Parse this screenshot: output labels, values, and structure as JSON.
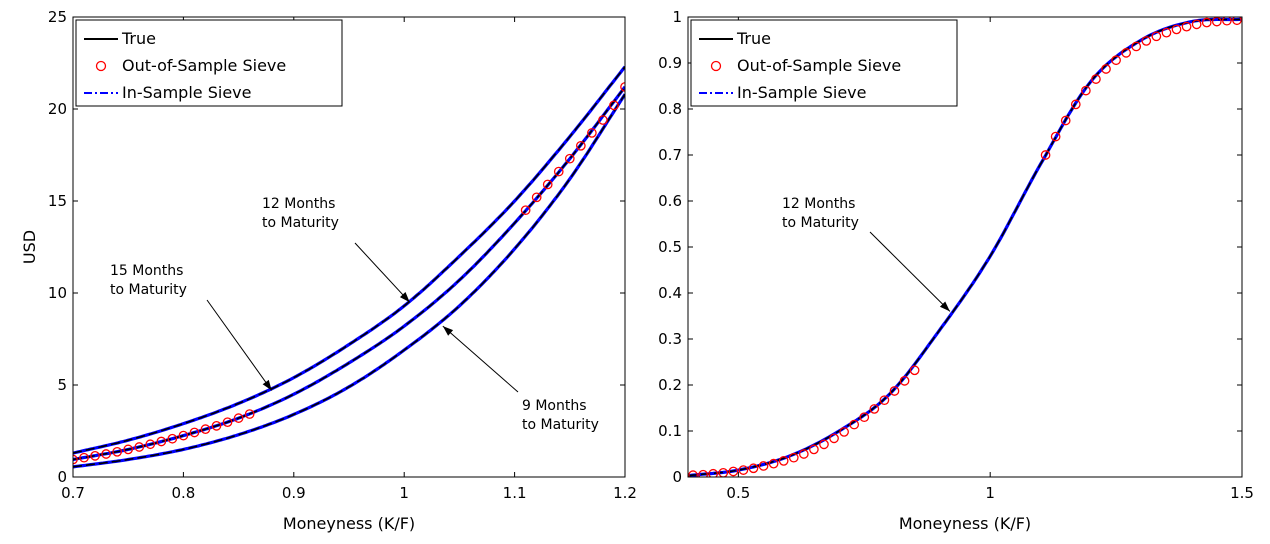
{
  "chart_data": [
    {
      "type": "line",
      "xlabel": "Moneyness (K/F)",
      "ylabel": "USD",
      "xlim": [
        0.7,
        1.2
      ],
      "ylim": [
        0,
        25
      ],
      "xticks": [
        0.7,
        0.8,
        0.9,
        1,
        1.1,
        1.2
      ],
      "xtick_labels": [
        "0.7",
        "0.8",
        "0.9",
        "1",
        "1.1",
        "1.2"
      ],
      "yticks": [
        0,
        5,
        10,
        15,
        20,
        25
      ],
      "ytick_labels": [
        "0",
        "5",
        "10",
        "15",
        "20",
        "25"
      ],
      "legend": {
        "position": "top-left",
        "entries": [
          "True",
          "Out-of-Sample Sieve",
          "In-Sample Sieve"
        ]
      },
      "legend_colors": [
        "#000000",
        "#ff0000",
        "#0000ff"
      ],
      "series": [
        {
          "name": "True",
          "maturity": "15 Months to Maturity",
          "x": [
            0.7,
            0.75,
            0.8,
            0.85,
            0.9,
            0.95,
            1.0,
            1.05,
            1.1,
            1.15,
            1.2
          ],
          "y": [
            1.3,
            2.0,
            2.9,
            4.0,
            5.4,
            7.2,
            9.3,
            12.0,
            15.0,
            18.5,
            22.3
          ]
        },
        {
          "name": "True",
          "maturity": "12 Months to Maturity",
          "x": [
            0.7,
            0.75,
            0.8,
            0.85,
            0.9,
            0.95,
            1.0,
            1.05,
            1.1,
            1.15,
            1.2
          ],
          "y": [
            0.95,
            1.5,
            2.25,
            3.2,
            4.5,
            6.2,
            8.2,
            10.7,
            13.8,
            17.3,
            21.2
          ]
        },
        {
          "name": "True",
          "maturity": "9 Months to Maturity",
          "x": [
            0.7,
            0.75,
            0.8,
            0.85,
            0.9,
            0.95,
            1.0,
            1.05,
            1.1,
            1.15,
            1.2
          ],
          "y": [
            0.55,
            0.95,
            1.5,
            2.3,
            3.4,
            4.9,
            6.9,
            9.3,
            12.4,
            16.2,
            20.8
          ]
        }
      ],
      "out_of_sample_points": {
        "x": [
          0.7,
          0.71,
          0.72,
          0.73,
          0.74,
          0.75,
          0.76,
          0.77,
          0.78,
          0.79,
          0.8,
          0.81,
          0.82,
          0.83,
          0.84,
          0.85,
          0.86,
          1.11,
          1.12,
          1.13,
          1.14,
          1.15,
          1.16,
          1.17,
          1.18,
          1.19,
          1.2
        ],
        "y": [
          0.95,
          1.05,
          1.15,
          1.25,
          1.37,
          1.5,
          1.63,
          1.78,
          1.93,
          2.08,
          2.25,
          2.42,
          2.6,
          2.78,
          2.98,
          3.2,
          3.42,
          14.5,
          15.2,
          15.9,
          16.6,
          17.3,
          18.0,
          18.7,
          19.4,
          20.2,
          21.2
        ]
      },
      "annotations": [
        {
          "line1": "15 Months",
          "line2": "to Maturity",
          "target_x": 0.88,
          "target_y": 4.7
        },
        {
          "line1": "12 Months",
          "line2": "to Maturity",
          "target_x": 1.005,
          "target_y": 9.5
        },
        {
          "line1": "9 Months",
          "line2": "to Maturity",
          "target_x": 1.035,
          "target_y": 8.2
        }
      ]
    },
    {
      "type": "line",
      "xlabel": "Moneyness (K/F)",
      "ylabel": "",
      "xlim": [
        0.4,
        1.5
      ],
      "ylim": [
        0,
        1
      ],
      "xticks": [
        0.5,
        1,
        1.5
      ],
      "xtick_labels": [
        "0.5",
        "1",
        "1.5"
      ],
      "yticks": [
        0,
        0.1,
        0.2,
        0.3,
        0.4,
        0.5,
        0.6,
        0.7,
        0.8,
        0.9,
        1
      ],
      "ytick_labels": [
        "0",
        "0.1",
        "0.2",
        "0.3",
        "0.4",
        "0.5",
        "0.6",
        "0.7",
        "0.8",
        "0.9",
        "1"
      ],
      "legend": {
        "position": "top-left",
        "entries": [
          "True",
          "Out-of-Sample Sieve",
          "In-Sample Sieve"
        ]
      },
      "legend_colors": [
        "#000000",
        "#ff0000",
        "#0000ff"
      ],
      "series": [
        {
          "name": "True",
          "maturity": "12 Months to Maturity",
          "x": [
            0.4,
            0.5,
            0.6,
            0.7,
            0.8,
            0.9,
            1.0,
            1.1,
            1.2,
            1.3,
            1.4,
            1.5
          ],
          "y": [
            0.003,
            0.015,
            0.045,
            0.1,
            0.18,
            0.32,
            0.48,
            0.68,
            0.86,
            0.95,
            0.99,
            0.995
          ]
        }
      ],
      "out_of_sample_points": {
        "x": [
          0.41,
          0.43,
          0.45,
          0.47,
          0.49,
          0.51,
          0.53,
          0.55,
          0.57,
          0.59,
          0.61,
          0.63,
          0.65,
          0.67,
          0.69,
          0.71,
          0.73,
          0.75,
          0.77,
          0.79,
          0.81,
          0.83,
          0.85,
          1.11,
          1.13,
          1.15,
          1.17,
          1.19,
          1.21,
          1.23,
          1.25,
          1.27,
          1.29,
          1.31,
          1.33,
          1.35,
          1.37,
          1.39,
          1.41,
          1.43,
          1.45,
          1.47,
          1.49
        ],
        "y": [
          0.004,
          0.005,
          0.007,
          0.009,
          0.012,
          0.015,
          0.019,
          0.024,
          0.029,
          0.035,
          0.042,
          0.05,
          0.06,
          0.071,
          0.084,
          0.098,
          0.114,
          0.13,
          0.148,
          0.167,
          0.187,
          0.209,
          0.232,
          0.7,
          0.74,
          0.775,
          0.81,
          0.84,
          0.865,
          0.887,
          0.906,
          0.922,
          0.936,
          0.948,
          0.958,
          0.966,
          0.973,
          0.979,
          0.984,
          0.988,
          0.99,
          0.992,
          0.993
        ]
      },
      "annotations": [
        {
          "line1": "12 Months",
          "line2": "to Maturity",
          "target_x": 0.92,
          "target_y": 0.36
        }
      ]
    }
  ]
}
